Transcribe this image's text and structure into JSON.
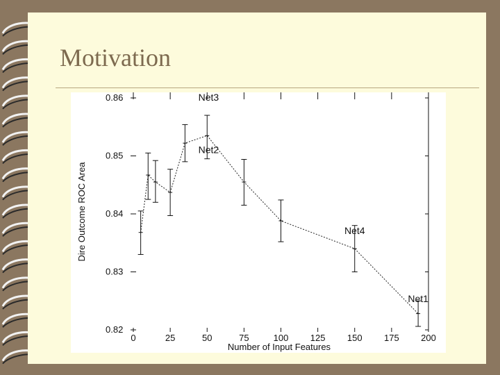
{
  "slide": {
    "title": "Motivation"
  },
  "chart_data": {
    "type": "line",
    "title": "",
    "xlabel": "Number of Input Features",
    "ylabel": "Dire Outcome ROC Area",
    "xlim": [
      0,
      200
    ],
    "ylim": [
      0.82,
      0.86
    ],
    "xticks": [
      0,
      25,
      50,
      75,
      100,
      125,
      150,
      175,
      200
    ],
    "yticks": [
      0.82,
      0.83,
      0.84,
      0.85,
      0.86
    ],
    "ytick_labels": [
      "0.82",
      "0.83",
      "0.84",
      "0.85",
      "0.86"
    ],
    "grid": false,
    "series": [
      {
        "points": [
          {
            "x": 5,
            "y": 0.8368,
            "lo": 0.833,
            "hi": 0.8405
          },
          {
            "x": 10,
            "y": 0.8467,
            "lo": 0.8425,
            "hi": 0.8505
          },
          {
            "x": 15,
            "y": 0.8455,
            "lo": 0.842,
            "hi": 0.8492
          },
          {
            "x": 25,
            "y": 0.8437,
            "lo": 0.8397,
            "hi": 0.8477
          },
          {
            "x": 35,
            "y": 0.8522,
            "lo": 0.849,
            "hi": 0.8554
          },
          {
            "x": 50,
            "y": 0.8535,
            "lo": 0.8495,
            "hi": 0.857
          },
          {
            "x": 75,
            "y": 0.8455,
            "lo": 0.8415,
            "hi": 0.8494
          },
          {
            "x": 100,
            "y": 0.8388,
            "lo": 0.8352,
            "hi": 0.8424
          },
          {
            "x": 150,
            "y": 0.834,
            "lo": 0.83,
            "hi": 0.838
          },
          {
            "x": 193,
            "y": 0.8228,
            "lo": 0.8206,
            "hi": 0.825
          }
        ]
      }
    ],
    "annotations": [
      {
        "text": "Net3",
        "x": 51,
        "y": 0.8595
      },
      {
        "text": "Net2",
        "x": 51,
        "y": 0.8505
      },
      {
        "text": "Net4",
        "x": 150,
        "y": 0.8365
      },
      {
        "text": "Net1",
        "x": 193,
        "y": 0.8248
      }
    ]
  }
}
